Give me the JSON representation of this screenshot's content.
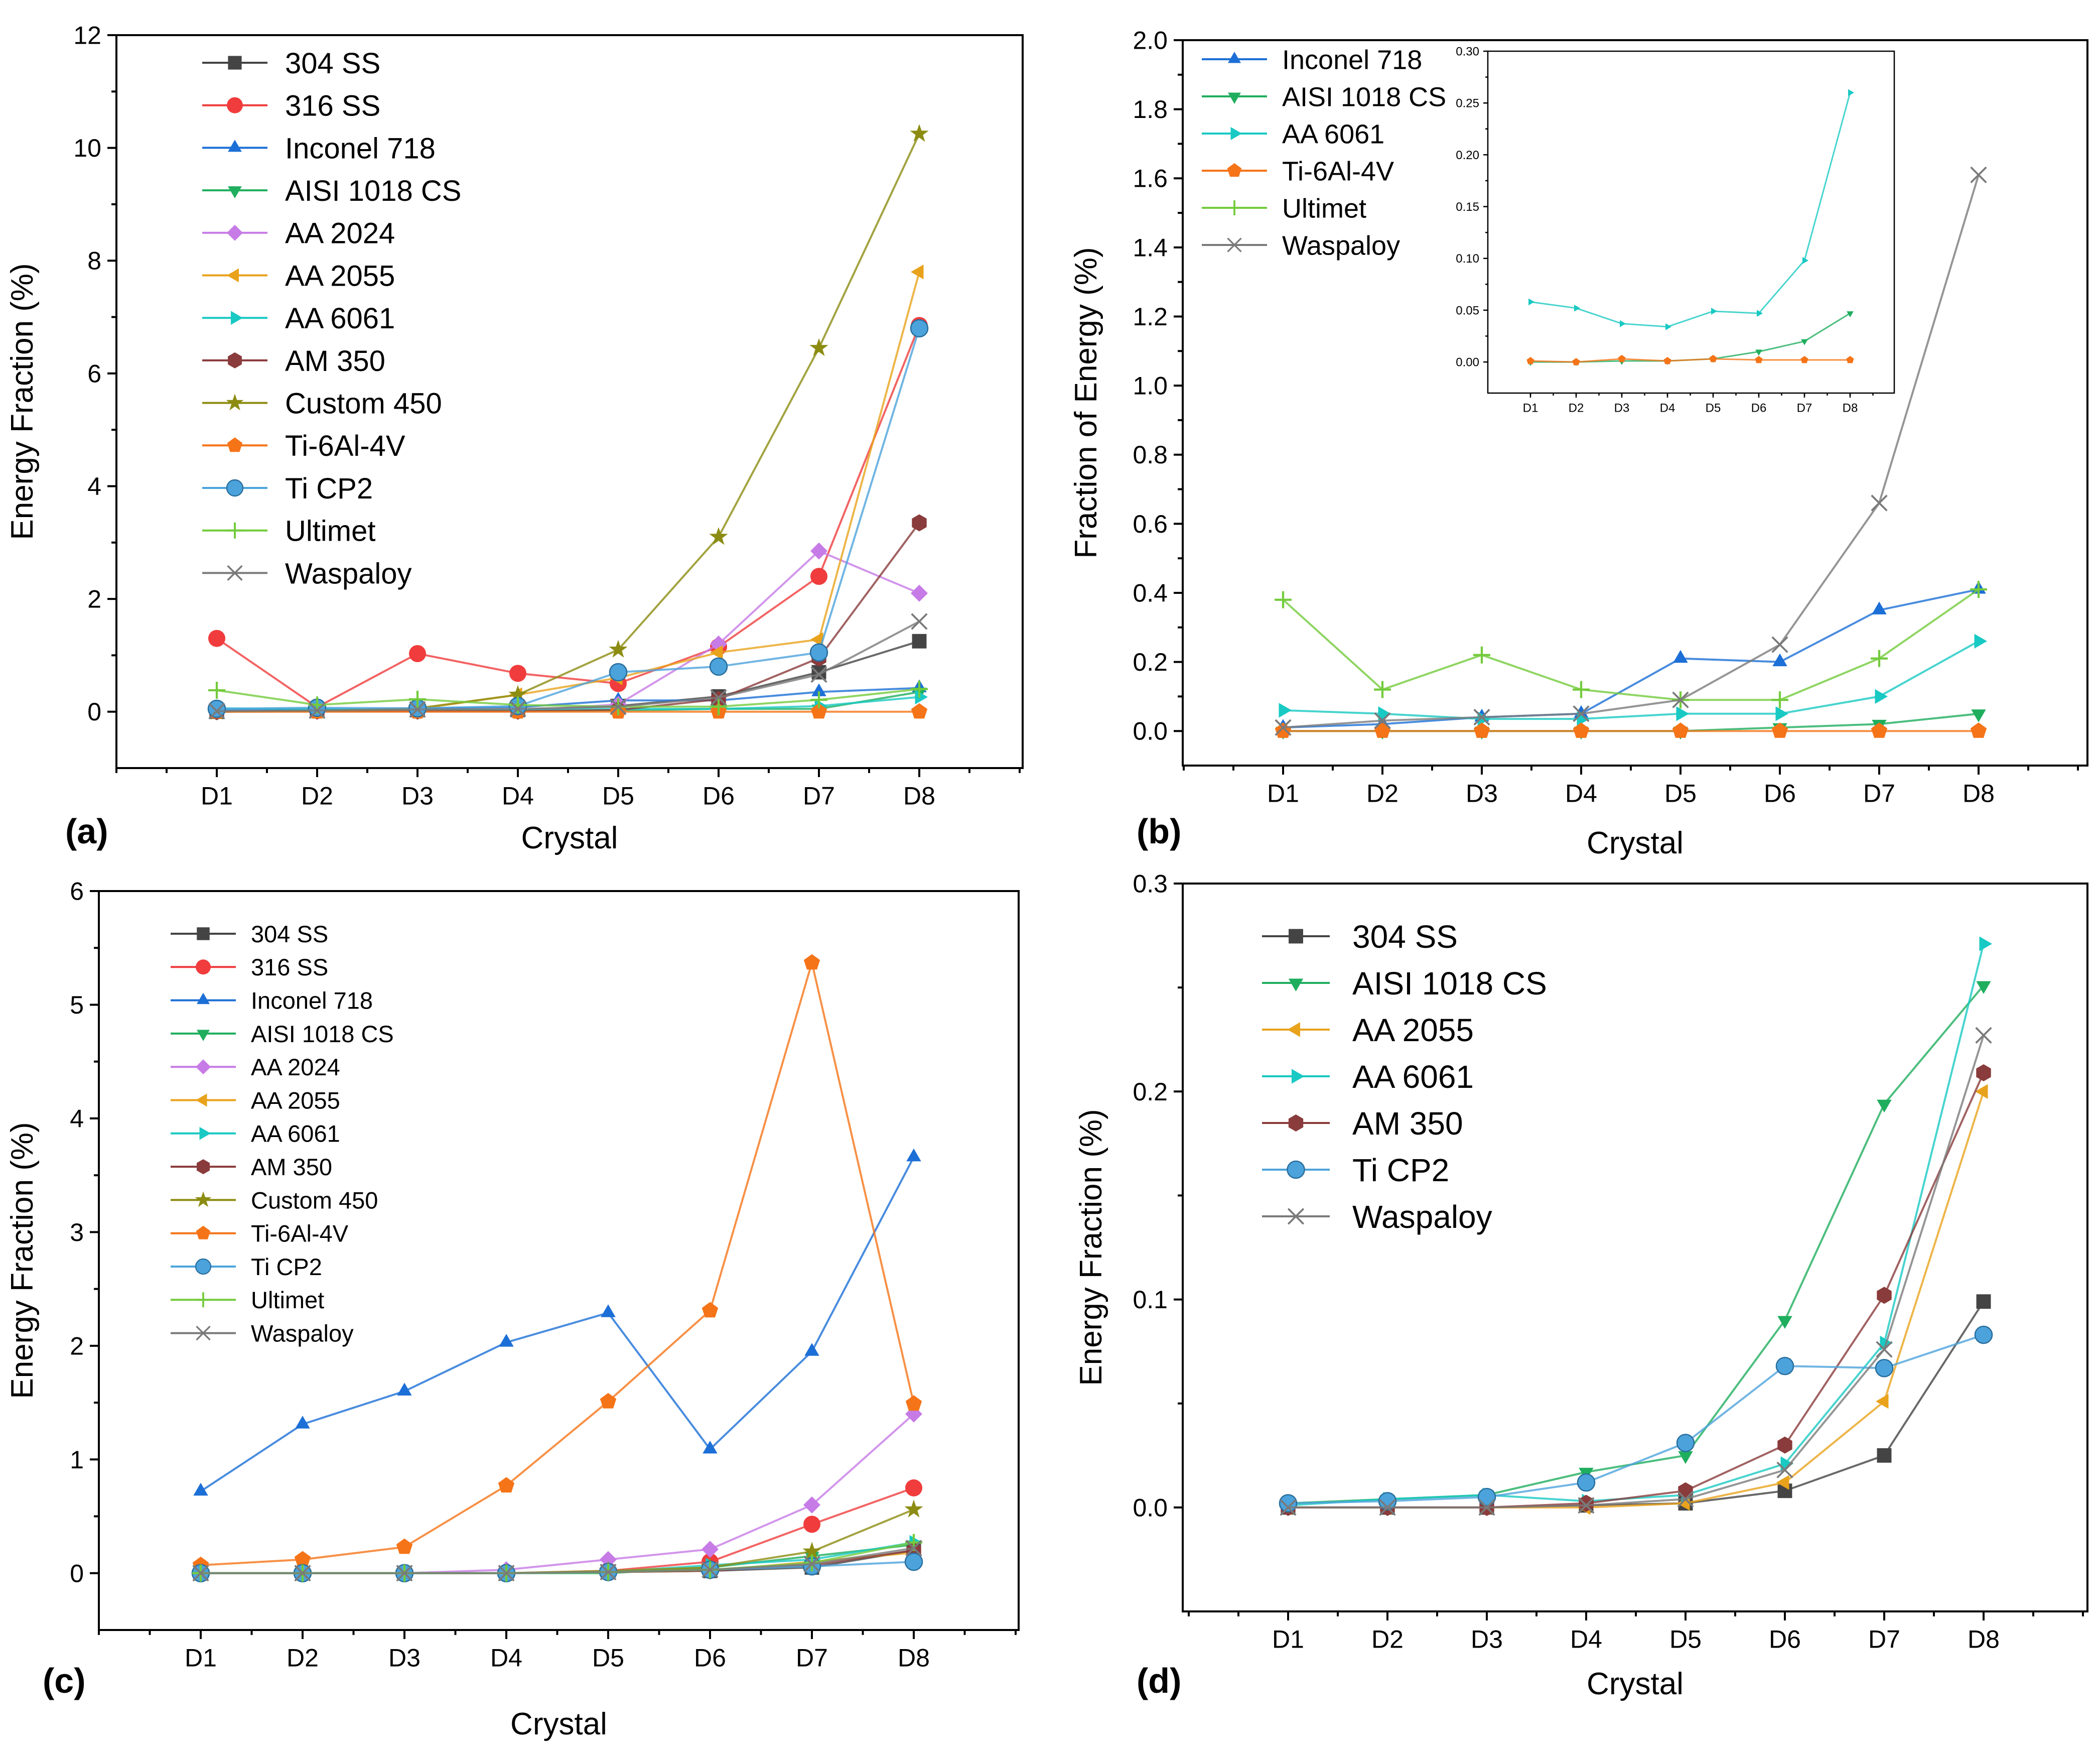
{
  "figure": {
    "panels": [
      "(a)",
      "(b)",
      "(c)",
      "(d)"
    ]
  },
  "chart_data": [
    {
      "panel": "(a)",
      "type": "line",
      "xlabel": "Crystal",
      "ylabel": "Energy Fraction (%)",
      "categories": [
        "D1",
        "D2",
        "D3",
        "D4",
        "D5",
        "D6",
        "D7",
        "D8"
      ],
      "ylim": [
        -1,
        12
      ],
      "yticks": [
        0,
        2,
        4,
        6,
        8,
        10,
        12
      ],
      "legend": "top-left",
      "series": [
        {
          "name": "304 SS",
          "color": "#444444",
          "marker": "square",
          "values": [
            0.0,
            0.03,
            0.03,
            0.03,
            0.1,
            0.27,
            0.7,
            1.25
          ]
        },
        {
          "name": "316 SS",
          "color": "#f03c3c",
          "marker": "circle",
          "values": [
            1.3,
            0.08,
            1.03,
            0.68,
            0.5,
            1.15,
            2.4,
            6.85
          ]
        },
        {
          "name": "Inconel 718",
          "color": "#1c6fd6",
          "marker": "triangle-up",
          "values": [
            0.02,
            0.03,
            0.06,
            0.08,
            0.2,
            0.2,
            0.35,
            0.42
          ]
        },
        {
          "name": "AISI 1018 CS",
          "color": "#1fae5e",
          "marker": "triangle-down",
          "values": [
            0.0,
            0.01,
            0.01,
            0.01,
            0.02,
            0.05,
            0.05,
            0.35
          ]
        },
        {
          "name": "AA 2024",
          "color": "#c77be6",
          "marker": "diamond",
          "values": [
            0.0,
            0.01,
            0.01,
            0.01,
            0.13,
            1.2,
            2.85,
            2.1
          ]
        },
        {
          "name": "AA 2055",
          "color": "#e9a21b",
          "marker": "triangle-left",
          "values": [
            0.0,
            0.01,
            0.05,
            0.3,
            0.6,
            1.05,
            1.28,
            7.8
          ]
        },
        {
          "name": "AA 6061",
          "color": "#19c9c3",
          "marker": "triangle-right",
          "values": [
            0.06,
            0.05,
            0.03,
            0.03,
            0.05,
            0.05,
            0.1,
            0.26
          ]
        },
        {
          "name": "AM 350",
          "color": "#8a3b3b",
          "marker": "hexagon",
          "values": [
            0.0,
            0.01,
            0.01,
            0.01,
            0.03,
            0.22,
            0.95,
            3.35
          ]
        },
        {
          "name": "Custom 450",
          "color": "#8c8c12",
          "marker": "star",
          "values": [
            0.0,
            0.01,
            0.06,
            0.3,
            1.1,
            3.1,
            6.45,
            10.25
          ]
        },
        {
          "name": "Ti-6Al-4V",
          "color": "#f57418",
          "marker": "pentagon",
          "values": [
            0.0,
            0.0,
            0.0,
            0.0,
            0.0,
            0.0,
            0.0,
            0.0
          ]
        },
        {
          "name": "Ti CP2",
          "color": "#4ca3dc",
          "marker": "sphere",
          "values": [
            0.05,
            0.07,
            0.06,
            0.1,
            0.7,
            0.8,
            1.05,
            6.8
          ]
        },
        {
          "name": "Ultimet",
          "color": "#73cb3c",
          "marker": "plus",
          "values": [
            0.38,
            0.12,
            0.22,
            0.12,
            0.09,
            0.09,
            0.21,
            0.4
          ]
        },
        {
          "name": "Waspaloy",
          "color": "#7a7a7a",
          "marker": "x",
          "values": [
            0.01,
            0.02,
            0.04,
            0.05,
            0.09,
            0.25,
            0.66,
            1.6
          ]
        }
      ]
    },
    {
      "panel": "(b)",
      "type": "line",
      "xlabel": "Crystal",
      "ylabel": "Fraction of Energy (%)",
      "categories": [
        "D1",
        "D2",
        "D3",
        "D4",
        "D5",
        "D6",
        "D7",
        "D8"
      ],
      "ylim": [
        -0.1,
        2.0
      ],
      "yticks": [
        "0.0",
        "0.2",
        "0.4",
        "0.6",
        "0.8",
        "1.0",
        "1.2",
        "1.4",
        "1.6",
        "1.8",
        "2.0"
      ],
      "legend": "top-left",
      "series": [
        {
          "name": "Inconel 718",
          "color": "#1c6fd6",
          "marker": "triangle-up",
          "values": [
            0.01,
            0.02,
            0.04,
            0.05,
            0.21,
            0.2,
            0.35,
            0.41
          ]
        },
        {
          "name": "AISI 1018 CS",
          "color": "#1fae5e",
          "marker": "triangle-down",
          "values": [
            0.0,
            0.0,
            0.0,
            0.0,
            0.0,
            0.01,
            0.02,
            0.05
          ]
        },
        {
          "name": "AA 6061",
          "color": "#19c9c3",
          "marker": "triangle-right",
          "values": [
            0.06,
            0.05,
            0.035,
            0.035,
            0.05,
            0.05,
            0.1,
            0.26
          ]
        },
        {
          "name": "Ti-6Al-4V",
          "color": "#f57418",
          "marker": "pentagon",
          "values": [
            0.0,
            0.0,
            0.0,
            0.0,
            0.0,
            0.0,
            0.0,
            0.0
          ]
        },
        {
          "name": "Ultimet",
          "color": "#73cb3c",
          "marker": "plus",
          "values": [
            0.38,
            0.12,
            0.22,
            0.12,
            0.09,
            0.09,
            0.21,
            0.41
          ]
        },
        {
          "name": "Waspaloy",
          "color": "#7a7a7a",
          "marker": "x",
          "values": [
            0.01,
            0.03,
            0.04,
            0.05,
            0.09,
            0.25,
            0.66,
            1.61
          ]
        }
      ],
      "inset": {
        "categories": [
          "D1",
          "D2",
          "D3",
          "D4",
          "D5",
          "D6",
          "D7",
          "D8"
        ],
        "ylim": [
          -0.03,
          0.3
        ],
        "yticks": [
          "0.00",
          "0.05",
          "0.10",
          "0.15",
          "0.20",
          "0.25",
          "0.30"
        ],
        "series": [
          {
            "name": "AA 6061",
            "color": "#19c9c3",
            "marker": "triangle-right",
            "values": [
              0.058,
              0.052,
              0.037,
              0.034,
              0.049,
              0.047,
              0.098,
              0.26
            ]
          },
          {
            "name": "AISI 1018 CS",
            "color": "#1fae5e",
            "marker": "triangle-down",
            "values": [
              0.0,
              0.0,
              0.001,
              0.001,
              0.003,
              0.01,
              0.02,
              0.047
            ]
          },
          {
            "name": "Ti-6Al-4V",
            "color": "#f57418",
            "marker": "pentagon",
            "values": [
              0.001,
              0.0,
              0.003,
              0.001,
              0.003,
              0.002,
              0.002,
              0.002
            ]
          }
        ]
      }
    },
    {
      "panel": "(c)",
      "type": "line",
      "xlabel": "Crystal",
      "ylabel": "Energy Fraction (%)",
      "categories": [
        "D1",
        "D2",
        "D3",
        "D4",
        "D5",
        "D6",
        "D7",
        "D8"
      ],
      "ylim": [
        -0.5,
        6
      ],
      "yticks": [
        0,
        1,
        2,
        3,
        4,
        5,
        6
      ],
      "legend": "top-left",
      "series": [
        {
          "name": "304 SS",
          "color": "#444444",
          "marker": "square",
          "values": [
            0.0,
            0.0,
            0.0,
            0.0,
            0.01,
            0.02,
            0.05,
            0.2
          ]
        },
        {
          "name": "316 SS",
          "color": "#f03c3c",
          "marker": "circle",
          "values": [
            0.0,
            0.0,
            0.0,
            0.0,
            0.02,
            0.1,
            0.43,
            0.75
          ]
        },
        {
          "name": "Inconel 718",
          "color": "#1c6fd6",
          "marker": "triangle-up",
          "values": [
            0.72,
            1.31,
            1.6,
            2.03,
            2.29,
            1.09,
            1.95,
            3.66
          ]
        },
        {
          "name": "AISI 1018 CS",
          "color": "#1fae5e",
          "marker": "triangle-down",
          "values": [
            0.0,
            0.0,
            0.0,
            0.0,
            0.0,
            0.05,
            0.15,
            0.25
          ]
        },
        {
          "name": "AA 2024",
          "color": "#c77be6",
          "marker": "diamond",
          "values": [
            0.0,
            0.0,
            0.0,
            0.03,
            0.12,
            0.21,
            0.6,
            1.4
          ]
        },
        {
          "name": "AA 2055",
          "color": "#e9a21b",
          "marker": "triangle-left",
          "values": [
            0.0,
            0.0,
            0.0,
            0.0,
            0.01,
            0.02,
            0.1,
            0.18
          ]
        },
        {
          "name": "AA 6061",
          "color": "#19c9c3",
          "marker": "triangle-right",
          "values": [
            0.0,
            0.0,
            0.0,
            0.0,
            0.01,
            0.07,
            0.12,
            0.27
          ]
        },
        {
          "name": "AM 350",
          "color": "#8a3b3b",
          "marker": "hexagon",
          "values": [
            0.0,
            0.0,
            0.0,
            0.0,
            0.01,
            0.02,
            0.07,
            0.2
          ]
        },
        {
          "name": "Custom 450",
          "color": "#8c8c12",
          "marker": "star",
          "values": [
            0.0,
            0.0,
            0.0,
            0.0,
            0.02,
            0.05,
            0.19,
            0.56
          ]
        },
        {
          "name": "Ti-6Al-4V",
          "color": "#f57418",
          "marker": "pentagon",
          "values": [
            0.07,
            0.12,
            0.23,
            0.77,
            1.51,
            2.31,
            5.37,
            1.49
          ]
        },
        {
          "name": "Ti CP2",
          "color": "#4ca3dc",
          "marker": "sphere",
          "values": [
            0.0,
            0.0,
            0.0,
            0.0,
            0.01,
            0.03,
            0.06,
            0.1
          ]
        },
        {
          "name": "Ultimet",
          "color": "#73cb3c",
          "marker": "plus",
          "values": [
            0.0,
            0.0,
            0.0,
            0.0,
            0.01,
            0.03,
            0.09,
            0.27
          ]
        },
        {
          "name": "Waspaloy",
          "color": "#7a7a7a",
          "marker": "x",
          "values": [
            0.0,
            0.0,
            0.0,
            0.0,
            0.01,
            0.03,
            0.08,
            0.22
          ]
        }
      ]
    },
    {
      "panel": "(d)",
      "type": "line",
      "xlabel": "Crystal",
      "ylabel": "Energy Fraction (%)",
      "categories": [
        "D1",
        "D2",
        "D3",
        "D4",
        "D5",
        "D6",
        "D7",
        "D8"
      ],
      "ylim": [
        -0.05,
        0.3
      ],
      "yticks": [
        "0.0",
        "0.1",
        "0.2",
        "0.3"
      ],
      "legend": "top-left",
      "series": [
        {
          "name": "304 SS",
          "color": "#444444",
          "marker": "square",
          "values": [
            0.0,
            0.0,
            0.0,
            0.001,
            0.002,
            0.008,
            0.025,
            0.099
          ]
        },
        {
          "name": "AISI 1018 CS",
          "color": "#1fae5e",
          "marker": "triangle-down",
          "values": [
            0.002,
            0.004,
            0.006,
            0.017,
            0.025,
            0.09,
            0.194,
            0.251
          ]
        },
        {
          "name": "AA 2055",
          "color": "#e9a21b",
          "marker": "triangle-left",
          "values": [
            0.0,
            0.0,
            0.0,
            0.0,
            0.002,
            0.012,
            0.051,
            0.2
          ]
        },
        {
          "name": "AA 6061",
          "color": "#19c9c3",
          "marker": "triangle-right",
          "values": [
            0.001,
            0.004,
            0.006,
            0.003,
            0.006,
            0.021,
            0.079,
            0.271
          ]
        },
        {
          "name": "AM 350",
          "color": "#8a3b3b",
          "marker": "hexagon",
          "values": [
            0.0,
            0.0,
            0.0,
            0.002,
            0.008,
            0.03,
            0.102,
            0.209
          ]
        },
        {
          "name": "Ti CP2",
          "color": "#4ca3dc",
          "marker": "sphere",
          "values": [
            0.002,
            0.003,
            0.005,
            0.012,
            0.031,
            0.068,
            0.067,
            0.083
          ]
        },
        {
          "name": "Waspaloy",
          "color": "#7a7a7a",
          "marker": "x",
          "values": [
            0.0,
            0.0,
            0.0,
            0.001,
            0.004,
            0.018,
            0.076,
            0.227
          ]
        }
      ]
    }
  ]
}
